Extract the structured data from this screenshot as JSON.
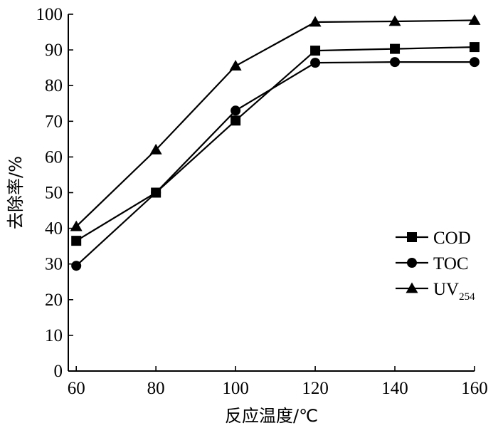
{
  "chart_data": {
    "type": "line",
    "title": "",
    "xlabel": "反应温度/℃",
    "ylabel": "去除率/%",
    "x": [
      60,
      80,
      100,
      120,
      140,
      160
    ],
    "xlim": [
      58,
      160
    ],
    "ylim": [
      0,
      100
    ],
    "x_ticks": [
      60,
      80,
      100,
      120,
      140,
      160
    ],
    "y_ticks": [
      0,
      10,
      20,
      30,
      40,
      50,
      60,
      70,
      80,
      90,
      100
    ],
    "grid": false,
    "legend_position": "right",
    "series": [
      {
        "name": "COD",
        "name_sub": "",
        "marker": "square",
        "values": [
          36.5,
          50.0,
          70.2,
          89.8,
          90.3,
          90.8
        ]
      },
      {
        "name": "TOC",
        "name_sub": "",
        "marker": "circle",
        "values": [
          29.5,
          50.0,
          73.0,
          86.4,
          86.6,
          86.6
        ]
      },
      {
        "name": "UV",
        "name_sub": "254",
        "marker": "triangle",
        "values": [
          40.5,
          62.0,
          85.5,
          97.8,
          98.0,
          98.3
        ]
      }
    ]
  }
}
